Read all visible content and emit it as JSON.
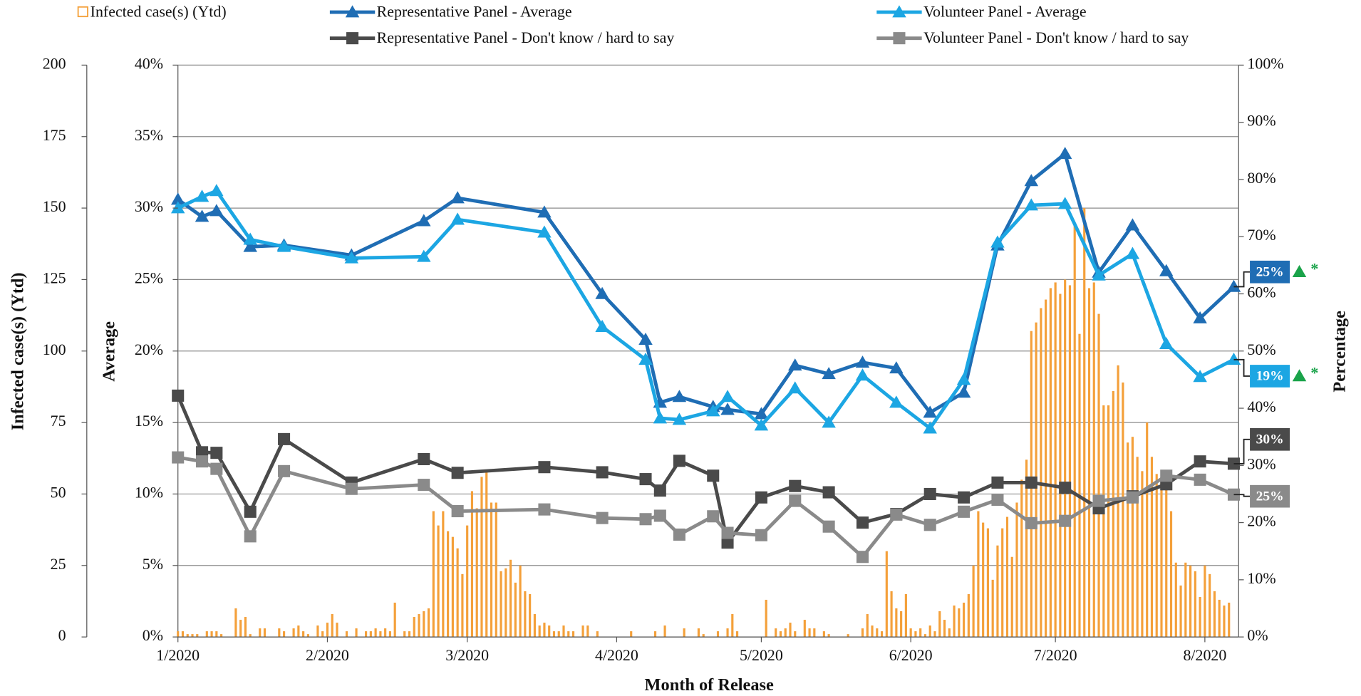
{
  "chart_data": {
    "type": "combo",
    "x_label": "Month of Release",
    "y_label": "Infected case(s) (Ytd)",
    "y2_label": "Average",
    "y3_label": "Percentage",
    "grid": true,
    "xlim": [
      0,
      220
    ],
    "xticks": [
      {
        "value": 0,
        "label": "1/2020"
      },
      {
        "value": 31,
        "label": "2/2020"
      },
      {
        "value": 60,
        "label": "3/2020"
      },
      {
        "value": 91,
        "label": "4/2020"
      },
      {
        "value": 121,
        "label": "5/2020"
      },
      {
        "value": 152,
        "label": "6/2020"
      },
      {
        "value": 182,
        "label": "7/2020"
      },
      {
        "value": 213,
        "label": "8/2020"
      }
    ],
    "ylim": [
      0,
      200
    ],
    "yticks": [
      0,
      25,
      50,
      75,
      100,
      125,
      150,
      175,
      200
    ],
    "y2lim": [
      0,
      40
    ],
    "y2ticks": [
      {
        "value": 0,
        "label": "0%"
      },
      {
        "value": 5,
        "label": "5%"
      },
      {
        "value": 10,
        "label": "10%"
      },
      {
        "value": 15,
        "label": "15%"
      },
      {
        "value": 20,
        "label": "20%"
      },
      {
        "value": 25,
        "label": "25%"
      },
      {
        "value": 30,
        "label": "30%"
      },
      {
        "value": 35,
        "label": "35%"
      },
      {
        "value": 40,
        "label": "40%"
      }
    ],
    "y3lim": [
      0,
      100
    ],
    "y3ticks": [
      {
        "value": 0,
        "label": "0%"
      },
      {
        "value": 10,
        "label": "10%"
      },
      {
        "value": 20,
        "label": "20%"
      },
      {
        "value": 30,
        "label": "30%"
      },
      {
        "value": 40,
        "label": "40%"
      },
      {
        "value": 50,
        "label": "50%"
      },
      {
        "value": 60,
        "label": "60%"
      },
      {
        "value": 70,
        "label": "70%"
      },
      {
        "value": 80,
        "label": "80%"
      },
      {
        "value": 90,
        "label": "90%"
      },
      {
        "value": 100,
        "label": "100%"
      }
    ],
    "x": [
      0,
      5,
      8,
      15,
      22,
      36,
      51,
      58,
      76,
      88,
      97,
      100,
      104,
      111,
      114,
      121,
      128,
      135,
      142,
      149,
      156,
      163,
      170,
      177,
      184,
      191,
      198,
      205,
      212,
      219
    ],
    "series": [
      {
        "name": "Infected case(s) (Ytd)",
        "type": "bar",
        "color": "#f4a03a",
        "x": [
          0,
          1,
          2,
          3,
          4,
          6,
          7,
          8,
          9,
          12,
          13,
          14,
          15,
          17,
          18,
          21,
          22,
          24,
          25,
          26,
          27,
          29,
          30,
          31,
          32,
          33,
          35,
          37,
          39,
          40,
          41,
          42,
          43,
          44,
          45,
          47,
          48,
          49,
          50,
          51,
          52,
          53,
          54,
          55,
          56,
          57,
          58,
          59,
          60,
          61,
          62,
          63,
          64,
          65,
          66,
          67,
          68,
          69,
          70,
          71,
          72,
          73,
          74,
          75,
          76,
          77,
          78,
          79,
          80,
          81,
          82,
          84,
          85,
          87,
          94,
          99,
          101,
          105,
          108,
          109,
          112,
          114,
          115,
          116,
          122,
          124,
          125,
          126,
          127,
          128,
          130,
          131,
          132,
          134,
          135,
          139,
          142,
          143,
          144,
          145,
          146,
          147,
          148,
          149,
          150,
          151,
          152,
          153,
          154,
          155,
          156,
          157,
          158,
          159,
          160,
          161,
          162,
          163,
          164,
          165,
          166,
          167,
          168,
          169,
          170,
          171,
          172,
          173,
          174,
          175,
          176,
          177,
          178,
          179,
          180,
          181,
          182,
          183,
          184,
          185,
          186,
          187,
          188,
          189,
          190,
          191,
          192,
          193,
          194,
          195,
          196,
          197,
          198,
          199,
          200,
          201,
          202,
          203,
          204,
          205,
          206,
          207,
          208,
          209,
          210,
          211,
          212,
          213,
          214,
          215,
          216,
          217,
          218
        ],
        "values": [
          2,
          2,
          1,
          1,
          1,
          2,
          2,
          2,
          1,
          10,
          6,
          7,
          1,
          3,
          3,
          3,
          2,
          3,
          4,
          2,
          1,
          4,
          2,
          5,
          8,
          5,
          2,
          3,
          2,
          2,
          3,
          2,
          3,
          2,
          12,
          2,
          2,
          7,
          8,
          9,
          10,
          44,
          39,
          44,
          37,
          35,
          31,
          22,
          39,
          51,
          45,
          56,
          58,
          47,
          47,
          23,
          24,
          27,
          19,
          25,
          16,
          15,
          8,
          4,
          5,
          4,
          2,
          2,
          4,
          2,
          2,
          4,
          4,
          2,
          2,
          2,
          4,
          3,
          3,
          1,
          2,
          3,
          8,
          2,
          13,
          3,
          2,
          3,
          5,
          2,
          6,
          3,
          3,
          2,
          1,
          1,
          3,
          8,
          4,
          3,
          2,
          30,
          16,
          10,
          9,
          15,
          3,
          2,
          3,
          1,
          4,
          2,
          9,
          6,
          3,
          11,
          10,
          12,
          15,
          25,
          44,
          40,
          38,
          20,
          32,
          38,
          42,
          28,
          47,
          55,
          62,
          107,
          110,
          115,
          118,
          122,
          124,
          120,
          125,
          123,
          144,
          106,
          150,
          122,
          124,
          113,
          81,
          81,
          86,
          95,
          89,
          68,
          70,
          63,
          58,
          75,
          63,
          57,
          54,
          55,
          44,
          26,
          18,
          26,
          25,
          23,
          14,
          25,
          22,
          16,
          13,
          11,
          12
        ]
      },
      {
        "name": "Representative Panel - Average",
        "type": "line",
        "marker": "triangle",
        "color": "#1f6db4",
        "axis": "y2",
        "values": [
          30.6,
          29.4,
          29.8,
          27.3,
          27.4,
          26.7,
          29.1,
          30.7,
          29.7,
          24.0,
          20.8,
          16.4,
          16.8,
          16.1,
          15.9,
          15.6,
          19.0,
          18.4,
          19.2,
          18.8,
          15.7,
          17.1,
          27.4,
          31.9,
          33.8,
          25.5,
          28.8,
          25.6,
          22.3,
          24.5
        ],
        "end_label": "25%",
        "significance": "*"
      },
      {
        "name": "Volunteer Panel - Average",
        "type": "line",
        "marker": "triangle",
        "color": "#1ca6e3",
        "axis": "y2",
        "values": [
          30.0,
          30.8,
          31.2,
          27.8,
          27.3,
          26.5,
          26.6,
          29.2,
          28.3,
          21.7,
          19.4,
          15.3,
          15.2,
          15.8,
          16.8,
          14.8,
          17.4,
          15.0,
          18.3,
          16.4,
          14.6,
          18.0,
          27.6,
          30.2,
          30.3,
          25.3,
          26.8,
          20.5,
          18.2,
          19.4
        ],
        "end_label": "19%",
        "significance": "*"
      },
      {
        "name": "Representative Panel - Don't know / hard to say",
        "type": "line",
        "marker": "square",
        "color": "#4a4a4a",
        "axis": "y3",
        "values": [
          42.2,
          32.3,
          32.2,
          21.9,
          34.6,
          27.0,
          31.1,
          28.7,
          29.7,
          28.8,
          27.6,
          25.6,
          30.8,
          28.2,
          16.5,
          24.4,
          26.4,
          25.3,
          20.0,
          21.5,
          25.0,
          24.4,
          27.0,
          27.0,
          26.1,
          22.5,
          24.6,
          26.7,
          30.7,
          30.3
        ],
        "end_label": "30%"
      },
      {
        "name": "Volunteer Panel - Don't know / hard to say",
        "type": "line",
        "marker": "square",
        "color": "#8a8a8a",
        "axis": "y3",
        "values": [
          31.4,
          30.7,
          29.4,
          17.6,
          29.0,
          25.9,
          26.6,
          22.0,
          22.3,
          20.8,
          20.6,
          21.2,
          17.9,
          21.1,
          18.2,
          17.8,
          23.8,
          19.3,
          14.0,
          21.4,
          19.6,
          21.9,
          24.0,
          19.9,
          20.3,
          23.8,
          24.4,
          28.2,
          27.5,
          24.9
        ],
        "end_label": "25%"
      }
    ]
  }
}
